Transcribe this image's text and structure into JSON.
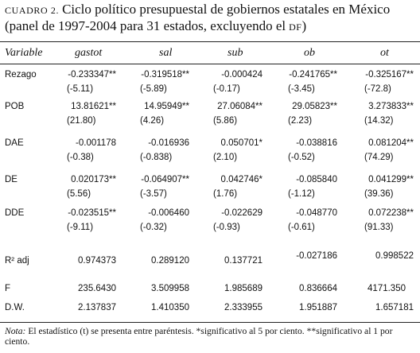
{
  "caption": {
    "label": "CUADRO 2.",
    "title": "Ciclo político presupuestal de gobiernos estatales en México (panel de 1997-2004 para 31 estados, excluyendo el",
    "abbr": "DF",
    "close": ")"
  },
  "headers": [
    "Variable",
    "gastot",
    "sal",
    "sub",
    "ob",
    "ot"
  ],
  "rows": [
    {
      "label": "Rezago",
      "coef": [
        "-0.233347**",
        "-0.319518**",
        "-0.000424",
        "-0.241765**",
        "-0.325167**"
      ],
      "t": [
        "(-5.11)",
        "(-5.89)",
        "(-0.17)",
        "(-3.45)",
        "(-72.8)"
      ]
    },
    {
      "label": "POB",
      "coef": [
        "13.81621**",
        "14.95949**",
        "27.06084**",
        "29.05823**",
        "3.273833**"
      ],
      "t": [
        "(21.80)",
        "(4.26)",
        "(5.86)",
        "(2.23)",
        "(14.32)"
      ]
    },
    {
      "label": "DAE",
      "coef": [
        "-0.001178",
        "-0.016936",
        "0.050701*",
        "-0.038816",
        "0.081204**"
      ],
      "t": [
        "(-0.38)",
        "(-0.838)",
        "(2.10)",
        "(-0.52)",
        "(74.29)"
      ]
    },
    {
      "label": "DE",
      "coef": [
        "0.020173**",
        "-0.064907**",
        "0.042746*",
        "-0.085840",
        "0.041299**"
      ],
      "t": [
        "(5.56)",
        "(-3.57)",
        "(1.76)",
        "(-1.12)",
        "(39.36)"
      ]
    },
    {
      "label": "DDE",
      "coef": [
        "-0.023515**",
        "-0.006460",
        "-0.022629",
        "-0.048770",
        "0.072238**"
      ],
      "t": [
        "(-9.11)",
        "(-0.32)",
        "(-0.93)",
        "(-0.61)",
        "(91.33)"
      ]
    }
  ],
  "stats": [
    {
      "label": "R² adj",
      "values": [
        "0.974373",
        "0.289120",
        "0.137721",
        "-0.027186",
        "0.998522"
      ]
    },
    {
      "label": "F",
      "values": [
        "235.6430",
        "3.509958",
        "1.985689",
        "0.836664",
        "4171.350"
      ]
    },
    {
      "label": "D.W.",
      "values": [
        "2.137837",
        "1.410350",
        "2.333955",
        "1.951887",
        "1.657181"
      ]
    }
  ],
  "note": {
    "label": "Nota:",
    "text": " El estadístico (t) se presenta entre paréntesis. *significativo al 5 por ciento. **significativo al 1 por ciento."
  }
}
